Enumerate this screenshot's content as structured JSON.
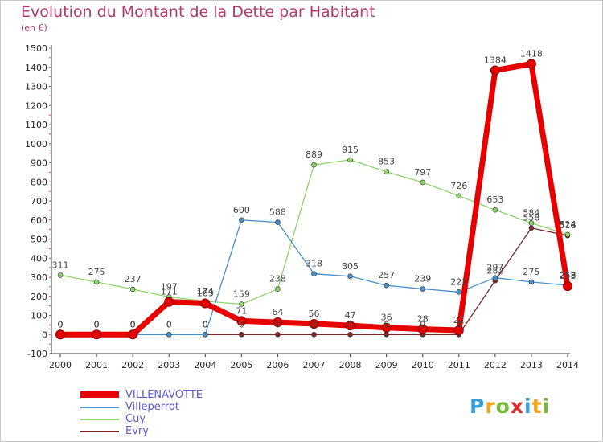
{
  "header": {
    "title": "Evolution du Montant de la Dette par Habitant",
    "subtitle": "(en €)"
  },
  "logo": {
    "text": "Proxiti",
    "colors": [
      "#3b9fd6",
      "#f2a51c",
      "#79b93a",
      "#e1282b",
      "#3b9fd6",
      "#f2a51c",
      "#79b93a"
    ]
  },
  "chart_data": {
    "type": "line",
    "title": "Evolution du Montant de la Dette par Habitant",
    "subtitle": "(en €)",
    "x": [
      "2000",
      "2001",
      "2002",
      "2003",
      "2004",
      "2005",
      "2006",
      "2007",
      "2008",
      "2009",
      "2010",
      "2011",
      "2012",
      "2013",
      "2014"
    ],
    "y_ticks": [
      -100,
      0,
      100,
      200,
      300,
      400,
      500,
      600,
      700,
      800,
      900,
      1000,
      1100,
      1200,
      1300,
      1400,
      1500
    ],
    "ylim": [
      -100,
      1500
    ],
    "grid": false,
    "legend_position": "bottom-left",
    "series": [
      {
        "name": "VILLENAVOTTE",
        "color": "#e60000",
        "values": [
          0,
          0,
          0,
          171,
          163,
          71,
          64,
          56,
          47,
          36,
          28,
          22,
          1384,
          1418,
          253
        ],
        "labels": [
          "0",
          "0",
          "0",
          "171",
          "163",
          "71",
          "64",
          "56",
          "47",
          "36",
          "28",
          "22",
          "1384",
          "1418",
          "253"
        ]
      },
      {
        "name": "Villeperrot",
        "color": "#4a90c8",
        "values": [
          0,
          0,
          0,
          0,
          0,
          600,
          588,
          318,
          305,
          257,
          239,
          223,
          297,
          275,
          258
        ],
        "labels": [
          "0",
          "0",
          "0",
          "0",
          "0",
          "600",
          "588",
          "318",
          "305",
          "257",
          "239",
          "223",
          "297",
          "275",
          "258"
        ]
      },
      {
        "name": "Cuy",
        "color": "#8fd46a",
        "values": [
          311,
          275,
          237,
          197,
          174,
          159,
          238,
          889,
          915,
          853,
          797,
          726,
          653,
          584,
          524
        ],
        "labels": [
          "311",
          "275",
          "237",
          "197",
          "174",
          "159",
          "238",
          "889",
          "915",
          "853",
          "797",
          "726",
          "653",
          "584",
          "524"
        ]
      },
      {
        "name": "Evry",
        "color": "#7a2a2a",
        "values": [
          0,
          0,
          0,
          0,
          0,
          0,
          0,
          0,
          0,
          0,
          0,
          0,
          282,
          558,
          518
        ],
        "labels": [
          "0",
          "0",
          "0",
          "0",
          "0",
          "0",
          "0",
          "0",
          "0",
          "0",
          "0",
          "0",
          "282",
          "558",
          "518"
        ]
      }
    ]
  }
}
